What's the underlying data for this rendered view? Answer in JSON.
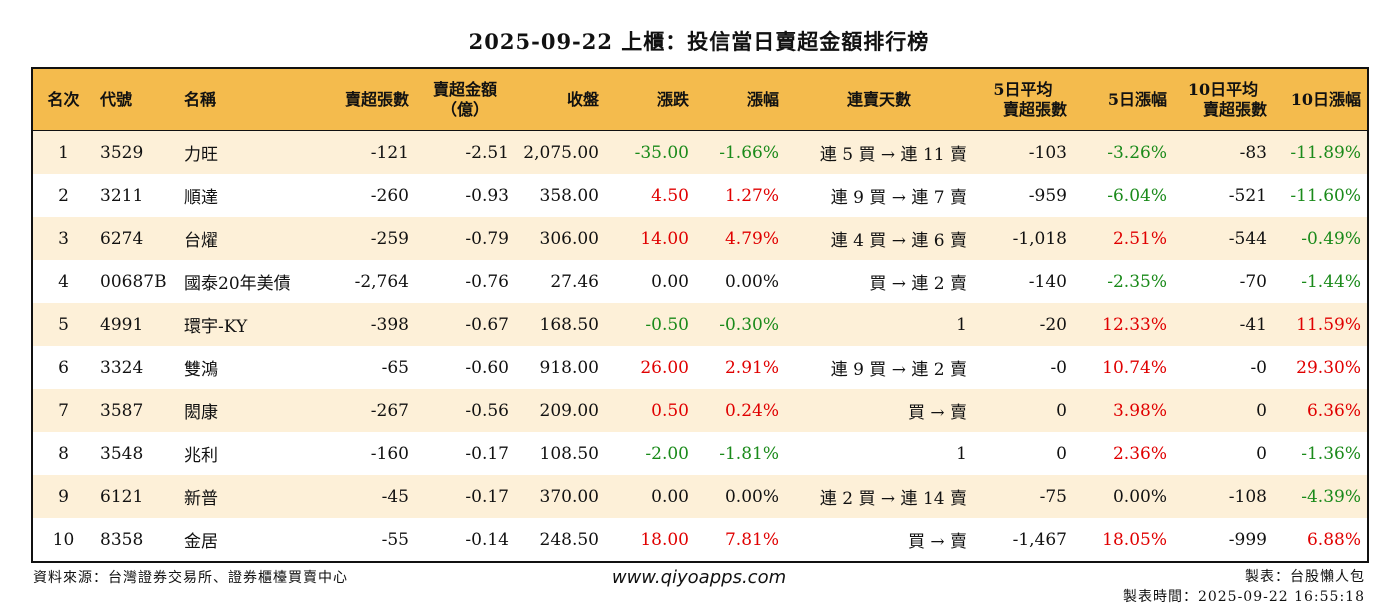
{
  "title": "2025-09-22 上櫃：投信當日賣超金額排行榜",
  "headers": {
    "rank": "名次",
    "code": "代號",
    "name": "名稱",
    "sell_lots": "賣超張數",
    "sell_amount_l1": "賣超金額",
    "sell_amount_l2": "（億）",
    "close": "收盤",
    "change": "漲跌",
    "pct": "漲幅",
    "streak": "連賣天數",
    "avg5_l1": "5日平均",
    "avg5_l2": "賣超張數",
    "pct5": "5日漲幅",
    "avg10_l1": "10日平均",
    "avg10_l2": "賣超張數",
    "pct10": "10日漲幅"
  },
  "rows": [
    {
      "rank": "1",
      "code": "3529",
      "name": "力旺",
      "sell_lots": "-121",
      "sell_amount": "-2.51",
      "close": "2,075.00",
      "change": "-35.00",
      "change_dir": "down",
      "pct": "-1.66%",
      "pct_dir": "down",
      "streak": "連 5 買 → 連 11 賣",
      "avg5": "-103",
      "pct5": "-3.26%",
      "pct5_dir": "down",
      "avg10": "-83",
      "pct10": "-11.89%",
      "pct10_dir": "down"
    },
    {
      "rank": "2",
      "code": "3211",
      "name": "順達",
      "sell_lots": "-260",
      "sell_amount": "-0.93",
      "close": "358.00",
      "change": "4.50",
      "change_dir": "up",
      "pct": "1.27%",
      "pct_dir": "up",
      "streak": "連 9 買 → 連 7 賣",
      "avg5": "-959",
      "pct5": "-6.04%",
      "pct5_dir": "down",
      "avg10": "-521",
      "pct10": "-11.60%",
      "pct10_dir": "down"
    },
    {
      "rank": "3",
      "code": "6274",
      "name": "台燿",
      "sell_lots": "-259",
      "sell_amount": "-0.79",
      "close": "306.00",
      "change": "14.00",
      "change_dir": "up",
      "pct": "4.79%",
      "pct_dir": "up",
      "streak": "連 4 買 → 連 6 賣",
      "avg5": "-1,018",
      "pct5": "2.51%",
      "pct5_dir": "up",
      "avg10": "-544",
      "pct10": "-0.49%",
      "pct10_dir": "down"
    },
    {
      "rank": "4",
      "code": "00687B",
      "name": "國泰20年美債",
      "sell_lots": "-2,764",
      "sell_amount": "-0.76",
      "close": "27.46",
      "change": "0.00",
      "change_dir": "flat",
      "pct": "0.00%",
      "pct_dir": "flat",
      "streak": "買 → 連 2 賣",
      "avg5": "-140",
      "pct5": "-2.35%",
      "pct5_dir": "down",
      "avg10": "-70",
      "pct10": "-1.44%",
      "pct10_dir": "down"
    },
    {
      "rank": "5",
      "code": "4991",
      "name": "環宇-KY",
      "sell_lots": "-398",
      "sell_amount": "-0.67",
      "close": "168.50",
      "change": "-0.50",
      "change_dir": "down",
      "pct": "-0.30%",
      "pct_dir": "down",
      "streak": "1",
      "avg5": "-20",
      "pct5": "12.33%",
      "pct5_dir": "up",
      "avg10": "-41",
      "pct10": "11.59%",
      "pct10_dir": "up"
    },
    {
      "rank": "6",
      "code": "3324",
      "name": "雙鴻",
      "sell_lots": "-65",
      "sell_amount": "-0.60",
      "close": "918.00",
      "change": "26.00",
      "change_dir": "up",
      "pct": "2.91%",
      "pct_dir": "up",
      "streak": "連 9 買 → 連 2 賣",
      "avg5": "-0",
      "pct5": "10.74%",
      "pct5_dir": "up",
      "avg10": "-0",
      "pct10": "29.30%",
      "pct10_dir": "up"
    },
    {
      "rank": "7",
      "code": "3587",
      "name": "閎康",
      "sell_lots": "-267",
      "sell_amount": "-0.56",
      "close": "209.00",
      "change": "0.50",
      "change_dir": "up",
      "pct": "0.24%",
      "pct_dir": "up",
      "streak": "買 → 賣",
      "avg5": "0",
      "pct5": "3.98%",
      "pct5_dir": "up",
      "avg10": "0",
      "pct10": "6.36%",
      "pct10_dir": "up"
    },
    {
      "rank": "8",
      "code": "3548",
      "name": "兆利",
      "sell_lots": "-160",
      "sell_amount": "-0.17",
      "close": "108.50",
      "change": "-2.00",
      "change_dir": "down",
      "pct": "-1.81%",
      "pct_dir": "down",
      "streak": "1",
      "avg5": "0",
      "pct5": "2.36%",
      "pct5_dir": "up",
      "avg10": "0",
      "pct10": "-1.36%",
      "pct10_dir": "down"
    },
    {
      "rank": "9",
      "code": "6121",
      "name": "新普",
      "sell_lots": "-45",
      "sell_amount": "-0.17",
      "close": "370.00",
      "change": "0.00",
      "change_dir": "flat",
      "pct": "0.00%",
      "pct_dir": "flat",
      "streak": "連 2 買 → 連 14 賣",
      "avg5": "-75",
      "pct5": "0.00%",
      "pct5_dir": "flat",
      "avg10": "-108",
      "pct10": "-4.39%",
      "pct10_dir": "down"
    },
    {
      "rank": "10",
      "code": "8358",
      "name": "金居",
      "sell_lots": "-55",
      "sell_amount": "-0.14",
      "close": "248.50",
      "change": "18.00",
      "change_dir": "up",
      "pct": "7.81%",
      "pct_dir": "up",
      "streak": "買 → 賣",
      "avg5": "-1,467",
      "pct5": "18.05%",
      "pct5_dir": "up",
      "avg10": "-999",
      "pct10": "6.88%",
      "pct10_dir": "up"
    }
  ],
  "colors": {
    "header_bg": "#f4bb4d",
    "row_alt_bg": "#fdf0d8",
    "up": "#e00000",
    "down": "#1a8a1a"
  },
  "footer": {
    "source": "資料來源：台灣證券交易所、證券櫃檯買賣中心",
    "site": "www.qiyoapps.com",
    "maker": "製表：台股懶人包",
    "time": "製表時間：2025-09-22 16:55:18"
  }
}
